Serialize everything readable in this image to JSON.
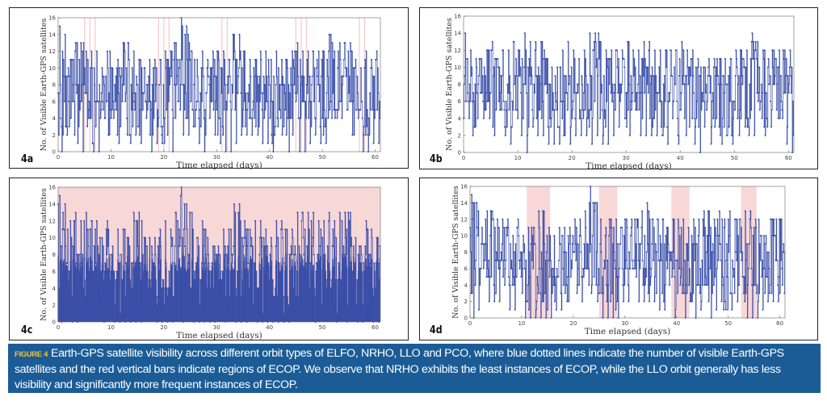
{
  "chart_data": [
    {
      "type": "line",
      "panel_label": "4a",
      "xlabel": "Time elapsed (days)",
      "ylabel": "No. of Visible Earth-GPS satellites",
      "xlim": [
        0,
        61
      ],
      "ylim": [
        0,
        16
      ],
      "xticks": [
        0,
        10,
        20,
        30,
        40,
        50,
        60
      ],
      "yticks": [
        0,
        2,
        4,
        6,
        8,
        10,
        12,
        14,
        16
      ],
      "grid": false,
      "days": "0-60",
      "daily_max": [
        15,
        14,
        11,
        13,
        13,
        12,
        12,
        12,
        10,
        12,
        10,
        11,
        13,
        13,
        12,
        11,
        10,
        11,
        11,
        11,
        12,
        12,
        13,
        16,
        15,
        12,
        11,
        12,
        11,
        12,
        12,
        12,
        11,
        14,
        14,
        12,
        11,
        11,
        12,
        12,
        11,
        12,
        11,
        11,
        12,
        13,
        12,
        12,
        12,
        12,
        12,
        14,
        12,
        13,
        13,
        13,
        11,
        10,
        12,
        11,
        12
      ],
      "daily_min": [
        0,
        2,
        2,
        1,
        0,
        0,
        0,
        0,
        1,
        1,
        0,
        0,
        1,
        1,
        2,
        1,
        0,
        0,
        1,
        1,
        0,
        0,
        2,
        2,
        2,
        1,
        1,
        0,
        2,
        2,
        1,
        0,
        0,
        1,
        2,
        2,
        2,
        1,
        1,
        1,
        0,
        1,
        1,
        0,
        0,
        0,
        0,
        1,
        2,
        1,
        1,
        2,
        2,
        2,
        2,
        2,
        0,
        0,
        0,
        1,
        1
      ],
      "ecop_intervals": [
        [
          4.9,
          5.1
        ],
        [
          5.9,
          6.1
        ],
        [
          6.9,
          7.1
        ],
        [
          18.9,
          19.1
        ],
        [
          19.9,
          20.1
        ],
        [
          20.9,
          21.1
        ],
        [
          30.9,
          31.1
        ],
        [
          31.9,
          32.1
        ],
        [
          44.9,
          45.1
        ],
        [
          45.9,
          46.1
        ],
        [
          46.9,
          47.1
        ],
        [
          56.9,
          57.1
        ],
        [
          57.9,
          58.1
        ]
      ]
    },
    {
      "type": "line",
      "panel_label": "4b",
      "xlabel": "Time elapsed (days)",
      "ylabel": "No. of Visible Earth-GPS satellites",
      "xlim": [
        0,
        61
      ],
      "ylim": [
        0,
        16
      ],
      "xticks": [
        0,
        10,
        20,
        30,
        40,
        50,
        60
      ],
      "yticks": [
        0,
        2,
        4,
        6,
        8,
        10,
        12,
        14,
        16
      ],
      "grid": false,
      "days": "0-60",
      "daily_max": [
        14,
        12,
        11,
        11,
        12,
        13,
        11,
        12,
        12,
        13,
        12,
        14,
        13,
        13,
        13,
        11,
        10,
        10,
        12,
        13,
        12,
        11,
        12,
        14,
        14,
        13,
        12,
        12,
        12,
        12,
        13,
        12,
        12,
        13,
        13,
        12,
        12,
        12,
        12,
        12,
        13,
        12,
        12,
        11,
        10,
        11,
        11,
        11,
        11,
        11,
        12,
        12,
        12,
        14,
        13,
        12,
        11,
        12,
        12,
        12,
        12
      ],
      "daily_min": [
        0,
        2,
        2,
        2,
        2,
        2,
        2,
        2,
        1,
        2,
        2,
        0,
        1,
        2,
        2,
        1,
        1,
        1,
        1,
        1,
        2,
        2,
        2,
        1,
        2,
        1,
        1,
        2,
        3,
        2,
        2,
        2,
        2,
        2,
        2,
        2,
        0,
        1,
        1,
        1,
        1,
        0,
        1,
        0,
        0,
        1,
        1,
        1,
        1,
        1,
        1,
        1,
        2,
        2,
        2,
        2,
        2,
        2,
        1,
        1,
        0
      ],
      "ecop_intervals": []
    },
    {
      "type": "line",
      "panel_label": "4c",
      "xlabel": "Time elapsed (days)",
      "ylabel": "No. of Visible Earth-GPS satellites",
      "xlim": [
        0,
        61
      ],
      "ylim": [
        0,
        16
      ],
      "xticks": [
        0,
        10,
        20,
        30,
        40,
        50,
        60
      ],
      "yticks": [
        0,
        2,
        4,
        6,
        8,
        10,
        12,
        14,
        16
      ],
      "grid": false,
      "days": "0-60",
      "daily_max": [
        15,
        14,
        12,
        13,
        12,
        13,
        12,
        12,
        10,
        12,
        9,
        11,
        11,
        10,
        13,
        13,
        10,
        10,
        10,
        11,
        12,
        11,
        13,
        16,
        14,
        13,
        10,
        12,
        10,
        9,
        9,
        11,
        11,
        14,
        14,
        12,
        11,
        12,
        12,
        11,
        10,
        12,
        12,
        11,
        11,
        13,
        13,
        13,
        13,
        12,
        12,
        13,
        12,
        13,
        13,
        13,
        10,
        9,
        12,
        11,
        10
      ],
      "daily_min": [
        0,
        0,
        0,
        0,
        0,
        0,
        0,
        0,
        0,
        0,
        0,
        0,
        0,
        0,
        0,
        0,
        0,
        0,
        0,
        0,
        0,
        0,
        0,
        0,
        0,
        0,
        0,
        0,
        0,
        0,
        0,
        0,
        0,
        0,
        0,
        0,
        0,
        0,
        0,
        0,
        0,
        0,
        0,
        0,
        0,
        0,
        0,
        0,
        0,
        0,
        0,
        0,
        0,
        0,
        0,
        0,
        0,
        0,
        0,
        0,
        0
      ],
      "ecop_intervals": [
        [
          0,
          61
        ]
      ]
    },
    {
      "type": "line",
      "panel_label": "4d",
      "xlabel": "Time elapsed (days)",
      "ylabel": "No. of Visible Earth-GPS satellites",
      "xlim": [
        0,
        61
      ],
      "ylim": [
        0,
        16
      ],
      "xticks": [
        0,
        10,
        20,
        30,
        40,
        50,
        60
      ],
      "yticks": [
        0,
        2,
        4,
        6,
        8,
        10,
        12,
        14,
        16
      ],
      "grid": false,
      "days": "0-60",
      "daily_max": [
        15,
        14,
        11,
        13,
        13,
        12,
        12,
        12,
        10,
        12,
        10,
        11,
        11,
        13,
        13,
        11,
        10,
        11,
        11,
        11,
        12,
        12,
        13,
        16,
        14,
        12,
        11,
        12,
        12,
        11,
        12,
        12,
        12,
        13,
        14,
        12,
        12,
        12,
        11,
        12,
        12,
        12,
        11,
        12,
        12,
        13,
        13,
        12,
        13,
        12,
        13,
        12,
        12,
        13,
        13,
        12,
        10,
        10,
        12,
        12,
        12
      ],
      "daily_min": [
        0,
        1,
        2,
        2,
        2,
        2,
        2,
        1,
        1,
        1,
        0,
        0,
        0,
        0,
        0,
        0,
        1,
        1,
        1,
        1,
        2,
        2,
        2,
        2,
        2,
        0,
        0,
        0,
        0,
        2,
        2,
        2,
        2,
        2,
        2,
        2,
        1,
        1,
        1,
        0,
        0,
        0,
        0,
        0,
        1,
        1,
        0,
        1,
        1,
        0,
        1,
        1,
        1,
        0,
        0,
        0,
        1,
        2,
        2,
        2,
        2
      ],
      "ecop_intervals": [
        [
          11.0,
          15.5
        ],
        [
          25.0,
          28.5
        ],
        [
          39.0,
          42.5
        ],
        [
          52.5,
          55.5
        ]
      ]
    }
  ],
  "colors": {
    "series": "#3a4fa8",
    "ecop": "#f5c9c9",
    "caption_bg": "#1b5c96",
    "caption_label": "#f2c230"
  },
  "caption": {
    "label": "FIGURE 4",
    "text": "Earth-GPS satellite visibility across different orbit types of ELFO, NRHO, LLO and PCO, where blue dotted lines indicate the number of visible Earth-GPS satellites and the red vertical bars indicate regions of ECOP. We observe that NRHO exhibits the least instances of ECOP, while the LLO orbit generally has less visibility and significantly more frequent instances of ECOP."
  }
}
